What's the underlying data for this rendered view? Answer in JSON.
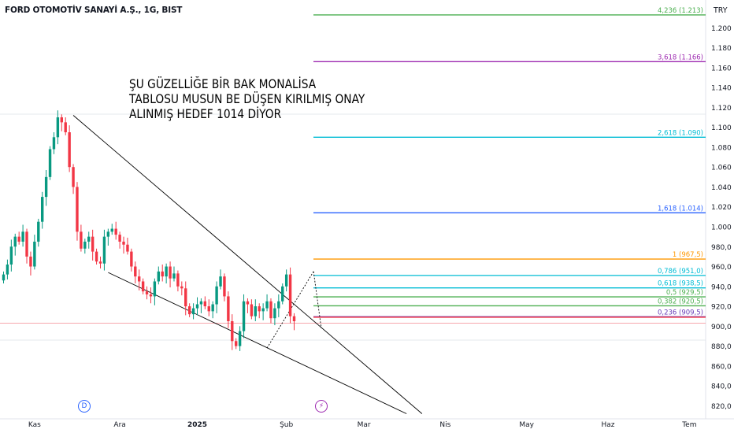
{
  "header": {
    "symbol_title": "FORD OTOMOTİV SANAYİ A.Ş., 1G, BIST",
    "currency": "TRY"
  },
  "note": {
    "lines": [
      "ŞU GÜZELLİĞE BİR BAK MONALİSA",
      "TABLOSU MUSUN BE DÜŞEN KIRILMIŞ ONAY",
      "ALINMIŞ HEDEF 1014 DİYOR"
    ]
  },
  "markers": {
    "dividend": "D",
    "earnings": "⚡"
  },
  "colors": {
    "up": "#089981",
    "down": "#f23645",
    "axis_text": "#131722",
    "grid": "#e0e3eb",
    "trendline": "#000000"
  },
  "chart_data": {
    "type": "candlestick",
    "ylim": [
      810,
      1228
    ],
    "y_ticks": [
      820,
      840,
      860,
      880,
      900,
      920,
      940,
      960,
      980,
      1000,
      1020,
      1040,
      1060,
      1080,
      1100,
      1120,
      1140,
      1160,
      1180,
      1200
    ],
    "y_tick_labels": [
      "820,0",
      "840,0",
      "860,0",
      "880,0",
      "900,0",
      "920,0",
      "940,0",
      "960,0",
      "980,0",
      "1.000",
      "1.020",
      "1.040",
      "1.060",
      "1.080",
      "1.100",
      "1.120",
      "1.140",
      "1.160",
      "1.180",
      "1.200"
    ],
    "x_labels": [
      {
        "label": "Kas",
        "bar": 8
      },
      {
        "label": "Ara",
        "bar": 30
      },
      {
        "label": "2025",
        "bar": 50,
        "bold": true
      },
      {
        "label": "Şub",
        "bar": 73
      },
      {
        "label": "Mar",
        "bar": 93
      },
      {
        "label": "Nis",
        "bar": 114
      },
      {
        "label": "May",
        "bar": 135
      },
      {
        "label": "Haz",
        "bar": 156
      },
      {
        "label": "Tem",
        "bar": 177
      }
    ],
    "closes": [
      952,
      962,
      980,
      990,
      985,
      995,
      970,
      960,
      985,
      1005,
      1030,
      1050,
      1078,
      1090,
      1110,
      1105,
      1095,
      1060,
      1040,
      995,
      978,
      985,
      990,
      975,
      965,
      963,
      990,
      995,
      998,
      992,
      985,
      982,
      975,
      960,
      950,
      945,
      935,
      932,
      930,
      945,
      955,
      950,
      960,
      948,
      953,
      940,
      938,
      920,
      912,
      918,
      922,
      925,
      920,
      915,
      922,
      940,
      950,
      930,
      905,
      885,
      880,
      895,
      925,
      922,
      910,
      920,
      915,
      918,
      925,
      908,
      918,
      925,
      940,
      952,
      910,
      905
    ],
    "fibonacci": [
      {
        "ratio": "4,236",
        "label": "4,236 (1.213)",
        "value": 1213,
        "color": "#4caf50"
      },
      {
        "ratio": "3,618",
        "label": "3,618 (1.166)",
        "value": 1166,
        "color": "#9c27b0"
      },
      {
        "ratio": "2,618",
        "label": "2,618 (1.090)",
        "value": 1090,
        "color": "#00bcd4"
      },
      {
        "ratio": "1,618",
        "label": "1,618 (1.014)",
        "value": 1014,
        "color": "#2962ff"
      },
      {
        "ratio": "1",
        "label": "1 (967,5)",
        "value": 967.5,
        "color": "#ff9800"
      },
      {
        "ratio": "0,786",
        "label": "0,786 (951,0)",
        "value": 951.0,
        "color": "#00bcd4"
      },
      {
        "ratio": "0,618",
        "label": "0,618 (938,5)",
        "value": 938.5,
        "color": "#00bcd4"
      },
      {
        "ratio": "0,5",
        "label": "0,5 (929,5)",
        "value": 929.5,
        "color": "#4caf50"
      },
      {
        "ratio": "0,382",
        "label": "0,382 (920,5)",
        "value": 920.5,
        "color": "#4caf50"
      },
      {
        "ratio": "0,236",
        "label": "0,236 (909,5)",
        "value": 909.5,
        "color": "#673ab7"
      },
      {
        "ratio": "0",
        "label": "",
        "value": 909.0,
        "color": "#f23645"
      }
    ],
    "price_line": 903,
    "grid": true
  }
}
